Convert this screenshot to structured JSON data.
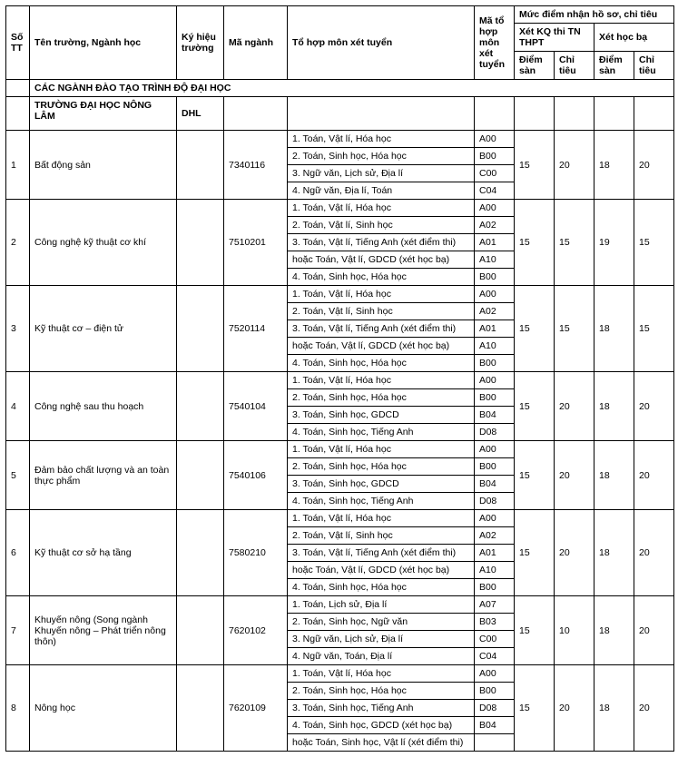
{
  "header": {
    "tt": "Số TT",
    "name": "Tên trường, Ngành học",
    "kh": "Ký hiệu trường",
    "code": "Mã ngành",
    "combos": "Tổ hợp môn xét tuyển",
    "mato": "Mã tổ hợp môn xét tuyển",
    "muc": "Mức điểm nhận hồ sơ, chỉ tiêu",
    "thpt": "Xét KQ thi TN THPT",
    "hocba": "Xét học bạ",
    "diemsan": "Điểm sàn",
    "chitieu": "Chỉ tiêu"
  },
  "section": "CÁC NGÀNH ĐÀO TẠO TRÌNH ĐỘ ĐẠI HỌC",
  "school_name": "TRƯỜNG ĐẠI HỌC NÔNG LÂM",
  "school_code": "DHL",
  "rows": [
    {
      "tt": "1",
      "name": "Bất động sản",
      "code": "7340116",
      "combos": [
        {
          "t": "1. Toán, Vật lí, Hóa học",
          "c": "A00"
        },
        {
          "t": "2. Toán, Sinh học, Hóa học",
          "c": "B00"
        },
        {
          "t": "3. Ngữ văn, Lịch sử, Địa lí",
          "c": "C00"
        },
        {
          "t": "4. Ngữ văn, Địa lí, Toán",
          "c": "C04"
        }
      ],
      "s1": "15",
      "c1": "20",
      "s2": "18",
      "c2": "20"
    },
    {
      "tt": "2",
      "name": "Công nghệ kỹ thuật cơ khí",
      "code": "7510201",
      "combos": [
        {
          "t": "1. Toán, Vật lí, Hóa học",
          "c": "A00"
        },
        {
          "t": "2. Toán, Vật lí, Sinh học",
          "c": "A02"
        },
        {
          "t": "3. Toán, Vật lí, Tiếng Anh (xét điểm thi)",
          "c": "A01"
        },
        {
          "t": "hoặc Toán, Vật lí, GDCD (xét học bạ)",
          "c": "A10"
        },
        {
          "t": "4. Toán, Sinh học, Hóa học",
          "c": "B00"
        }
      ],
      "s1": "15",
      "c1": "15",
      "s2": "19",
      "c2": "15"
    },
    {
      "tt": "3",
      "name": "Kỹ thuật cơ – điện tử",
      "code": "7520114",
      "combos": [
        {
          "t": "1. Toán, Vật lí, Hóa học",
          "c": "A00"
        },
        {
          "t": "2. Toán, Vật lí, Sinh học",
          "c": "A02"
        },
        {
          "t": "3. Toán, Vật lí, Tiếng Anh (xét điểm thi)",
          "c": "A01"
        },
        {
          "t": "hoặc Toán, Vật lí, GDCD (xét học bạ)",
          "c": "A10"
        },
        {
          "t": "4. Toán, Sinh học, Hóa học",
          "c": "B00"
        }
      ],
      "s1": "15",
      "c1": "15",
      "s2": "18",
      "c2": "15"
    },
    {
      "tt": "4",
      "name": "Công nghệ sau thu hoạch",
      "code": "7540104",
      "combos": [
        {
          "t": "1. Toán, Vật lí, Hóa học",
          "c": "A00"
        },
        {
          "t": "2. Toán, Sinh học, Hóa học",
          "c": "B00"
        },
        {
          "t": "3. Toán, Sinh học, GDCD",
          "c": "B04"
        },
        {
          "t": "4. Toán, Sinh học, Tiếng Anh",
          "c": "D08"
        }
      ],
      "s1": "15",
      "c1": "20",
      "s2": "18",
      "c2": "20"
    },
    {
      "tt": "5",
      "name": "Đảm bảo chất lượng và an toàn thực phẩm",
      "code": "7540106",
      "combos": [
        {
          "t": "1. Toán, Vật lí, Hóa học",
          "c": "A00"
        },
        {
          "t": "2. Toán, Sinh học, Hóa học",
          "c": "B00"
        },
        {
          "t": "3. Toán, Sinh học, GDCD",
          "c": "B04"
        },
        {
          "t": "4. Toán, Sinh học, Tiếng Anh",
          "c": "D08"
        }
      ],
      "s1": "15",
      "c1": "20",
      "s2": "18",
      "c2": "20"
    },
    {
      "tt": "6",
      "name": "Kỹ thuật cơ sở hạ tầng",
      "code": "7580210",
      "combos": [
        {
          "t": "1. Toán, Vật lí, Hóa học",
          "c": "A00"
        },
        {
          "t": "2. Toán, Vật lí, Sinh học",
          "c": "A02"
        },
        {
          "t": "3. Toán, Vật lí, Tiếng Anh (xét điểm thi)",
          "c": "A01"
        },
        {
          "t": "hoặc Toán, Vật lí, GDCD (xét học bạ)",
          "c": "A10"
        },
        {
          "t": "4. Toán, Sinh học, Hóa học",
          "c": "B00"
        }
      ],
      "s1": "15",
      "c1": "20",
      "s2": "18",
      "c2": "20"
    },
    {
      "tt": "7",
      "name": "Khuyến nông (Song ngành Khuyến nông – Phát triển nông thôn)",
      "code": "7620102",
      "combos": [
        {
          "t": "1. Toán, Lịch sử, Địa lí",
          "c": "A07"
        },
        {
          "t": "2. Toán, Sinh học, Ngữ văn",
          "c": "B03"
        },
        {
          "t": "3. Ngữ văn, Lịch sử, Địa lí",
          "c": "C00"
        },
        {
          "t": "4. Ngữ văn, Toán, Địa lí",
          "c": "C04"
        }
      ],
      "s1": "15",
      "c1": "10",
      "s2": "18",
      "c2": "20"
    },
    {
      "tt": "8",
      "name": "Nông học",
      "code": "7620109",
      "combos": [
        {
          "t": "1. Toán, Vật lí, Hóa học",
          "c": "A00"
        },
        {
          "t": "2. Toán, Sinh học, Hóa học",
          "c": "B00"
        },
        {
          "t": "3. Toán, Sinh học, Tiếng Anh",
          "c": "D08"
        },
        {
          "t": "4. Toán, Sinh học, GDCD (xét học bạ)",
          "c": "B04"
        },
        {
          "t": "hoặc Toán, Sinh học, Vật lí (xét điểm thi)",
          "c": ""
        }
      ],
      "s1": "15",
      "c1": "20",
      "s2": "18",
      "c2": "20"
    }
  ]
}
